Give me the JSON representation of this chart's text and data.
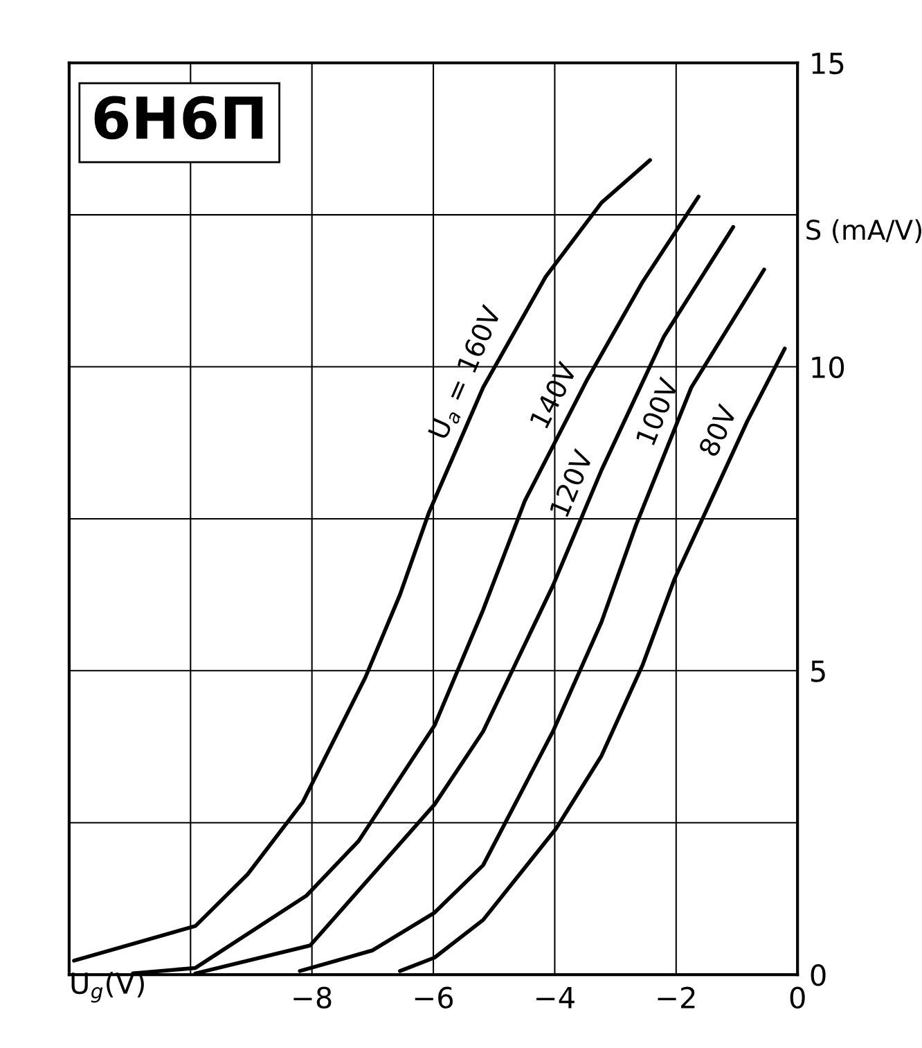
{
  "chart_data": {
    "type": "line",
    "title": "6Н6П",
    "xlabel": "U$_{g}$(V)",
    "ylabel": "S (mA/V)",
    "xlim": [
      -12,
      0
    ],
    "xticks": [
      {
        "value": -12,
        "label": null
      },
      {
        "value": -10,
        "label": null
      },
      {
        "value": -8,
        "label": "−8"
      },
      {
        "value": -6,
        "label": "−6"
      },
      {
        "value": -4,
        "label": "−4"
      },
      {
        "value": -2,
        "label": "−2"
      },
      0
    ],
    "ylim": [
      0,
      15
    ],
    "yticks": [
      0,
      {
        "value": 2.5,
        "label": null
      },
      5,
      {
        "value": 7.5,
        "label": null
      },
      10,
      {
        "value": 12.5,
        "label": null
      },
      15
    ],
    "grid": true,
    "legend": false,
    "marker": "none",
    "line_style": "solid",
    "series": [
      {
        "name": "U$_{a}$ = 160V",
        "color": "#000000",
        "x": [
          -11.92,
          -9.92,
          -9.06,
          -8.15,
          -7.12,
          -6.55,
          -6.07,
          -5.18,
          -4.15,
          -3.23,
          -2.43
        ],
        "values": [
          0.23,
          0.8,
          1.65,
          2.84,
          4.89,
          6.25,
          7.61,
          9.66,
          11.48,
          12.7,
          13.4
        ]
      },
      {
        "name": "140V",
        "color": "#000000",
        "x": [
          -10.95,
          -9.92,
          -8.09,
          -7.23,
          -5.98,
          -5.18,
          -4.49,
          -3.46,
          -2.55,
          -1.63
        ],
        "values": [
          0.02,
          0.11,
          1.3,
          2.2,
          4.1,
          6.0,
          7.8,
          9.8,
          11.4,
          12.8
        ]
      },
      {
        "name": "120V",
        "color": "#000000",
        "x": [
          -9.92,
          -8.03,
          -5.98,
          -5.18,
          -4.03,
          -3.23,
          -2.2,
          -1.06
        ],
        "values": [
          0.02,
          0.48,
          2.8,
          4.0,
          6.4,
          8.3,
          10.5,
          12.3
        ]
      },
      {
        "name": "100V",
        "color": "#000000",
        "x": [
          -8.2,
          -7.0,
          -5.98,
          -5.18,
          -4.03,
          -3.23,
          -2.66,
          -1.75,
          -0.55
        ],
        "values": [
          0.06,
          0.4,
          1.02,
          1.8,
          4.0,
          5.8,
          7.4,
          9.66,
          11.6
        ]
      },
      {
        "name": "80V",
        "color": "#000000",
        "x": [
          -6.55,
          -5.98,
          -5.18,
          -3.98,
          -3.23,
          -2.55,
          -2.03,
          -1.52,
          -0.83,
          -0.21
        ],
        "values": [
          0.06,
          0.28,
          0.9,
          2.4,
          3.6,
          5.1,
          6.5,
          7.6,
          9.1,
          10.3
        ]
      }
    ]
  }
}
